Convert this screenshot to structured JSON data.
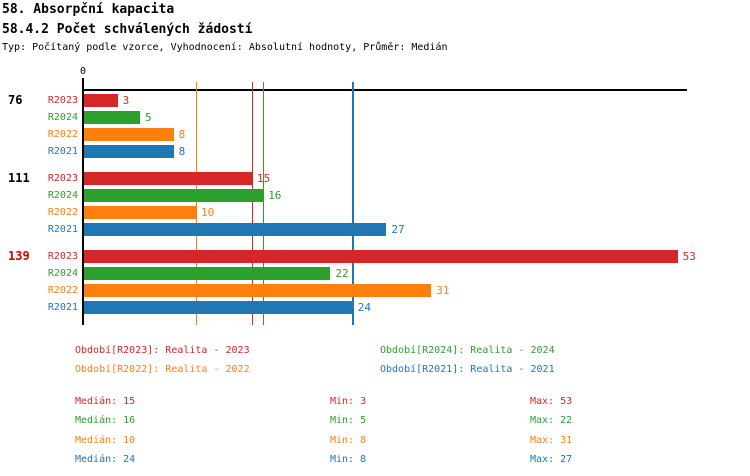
{
  "header": {
    "title": "58. Absorpční kapacita",
    "subtitle": "58.4.2 Počet schválených žádostí",
    "meta": "Typ: Počítaný podle vzorce, Vyhodnocení: Absolutní hodnoty, Průměr: Medián"
  },
  "colors": {
    "R2023": "#d62728",
    "R2024": "#2ca02c",
    "R2022": "#ff7f0e",
    "R2021": "#1f77b4",
    "highlight": "#dd0000",
    "axis": "#000000",
    "text": "#000000"
  },
  "chart_data": {
    "type": "bar",
    "orientation": "horizontal",
    "title": "58.4.2 Počet schválených žádostí",
    "x_axis": {
      "min": 0,
      "max": 54,
      "origin_tick_label": "0",
      "grid": false
    },
    "series_order": [
      "R2023",
      "R2024",
      "R2022",
      "R2021"
    ],
    "groups": [
      {
        "label": "76",
        "highlight": false,
        "values": {
          "R2023": 3,
          "R2024": 5,
          "R2022": 8,
          "R2021": 8
        }
      },
      {
        "label": "111",
        "highlight": false,
        "values": {
          "R2023": 15,
          "R2024": 16,
          "R2022": 10,
          "R2021": 27
        }
      },
      {
        "label": "139",
        "highlight": true,
        "values": {
          "R2023": 53,
          "R2024": 22,
          "R2022": 31,
          "R2021": 24
        }
      }
    ],
    "median_lines": {
      "R2023": 15,
      "R2024": 16,
      "R2022": 10,
      "R2021": 24
    }
  },
  "legend": {
    "items": [
      {
        "series": "R2023",
        "label": "Období[R2023]: Realita - 2023"
      },
      {
        "series": "R2024",
        "label": "Období[R2024]: Realita - 2024"
      },
      {
        "series": "R2022",
        "label": "Období[R2022]: Realita - 2022"
      },
      {
        "series": "R2021",
        "label": "Období[R2021]: Realita - 2021"
      }
    ]
  },
  "stats": {
    "rows": [
      {
        "series": "R2023",
        "median_label": "Medián: 15",
        "min_label": "Min: 3",
        "max_label": "Max: 53"
      },
      {
        "series": "R2024",
        "median_label": "Medián: 16",
        "min_label": "Min: 5",
        "max_label": "Max: 22"
      },
      {
        "series": "R2022",
        "median_label": "Medián: 10",
        "min_label": "Min: 8",
        "max_label": "Max: 31"
      },
      {
        "series": "R2021",
        "median_label": "Medián: 24",
        "min_label": "Min: 8",
        "max_label": "Max: 27"
      }
    ]
  }
}
